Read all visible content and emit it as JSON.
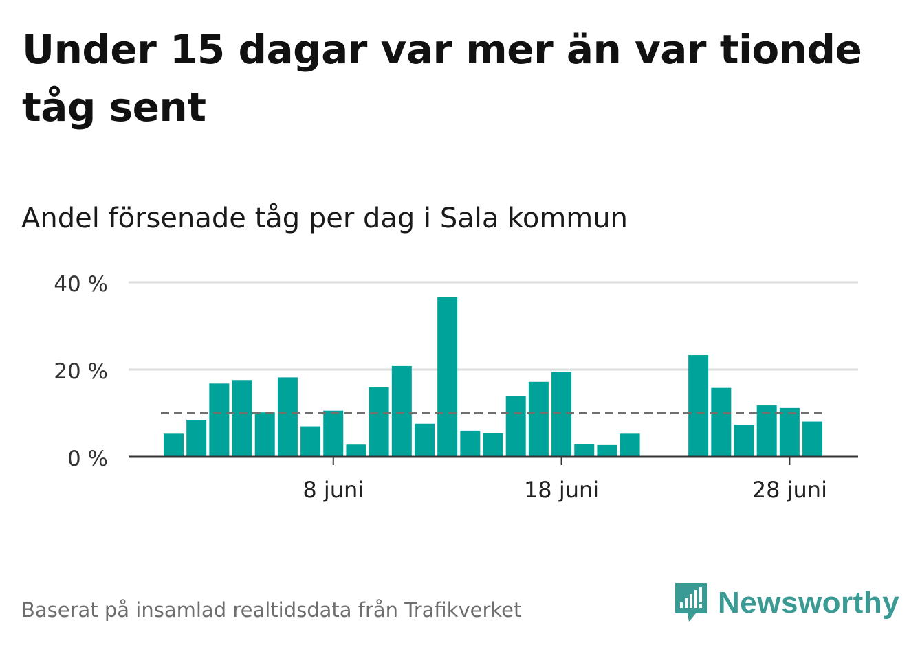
{
  "title": "Under 15 dagar var mer än var tionde tåg sent",
  "subtitle": "Andel försenade tåg per dag i Sala kommun",
  "footer": "Baserat på insamlad realtidsdata från Trafikverket",
  "brand": {
    "name": "Newsworthy",
    "icon": "newsworthy-logo-icon",
    "color": "#3a9a94"
  },
  "chart_data": {
    "type": "bar",
    "x": [
      1,
      2,
      3,
      4,
      5,
      6,
      7,
      8,
      9,
      10,
      11,
      12,
      13,
      14,
      15,
      16,
      17,
      18,
      19,
      20,
      21,
      22,
      23,
      24,
      25,
      26,
      27,
      28,
      29
    ],
    "values": [
      5.3,
      8.5,
      16.8,
      17.6,
      10.2,
      18.2,
      7.0,
      10.6,
      2.8,
      15.9,
      20.8,
      7.6,
      36.6,
      6.0,
      5.4,
      14.0,
      17.2,
      19.5,
      2.9,
      2.7,
      5.3,
      null,
      null,
      23.3,
      15.8,
      7.4,
      11.8,
      11.2,
      8.1
    ],
    "reference_line": 10,
    "x_ticks": [
      {
        "x": 8,
        "label": "8 juni"
      },
      {
        "x": 18,
        "label": "18 juni"
      },
      {
        "x": 28,
        "label": "28 juni"
      }
    ],
    "y_ticks": [
      {
        "v": 0,
        "label": "0 %"
      },
      {
        "v": 20,
        "label": "20 %"
      },
      {
        "v": 40,
        "label": "40 %"
      }
    ],
    "ylim": [
      0,
      40
    ],
    "grid": true,
    "colors": {
      "bar": "#00a39a",
      "grid": "#dddddd",
      "axis": "#333333",
      "reference": "#707070"
    }
  }
}
